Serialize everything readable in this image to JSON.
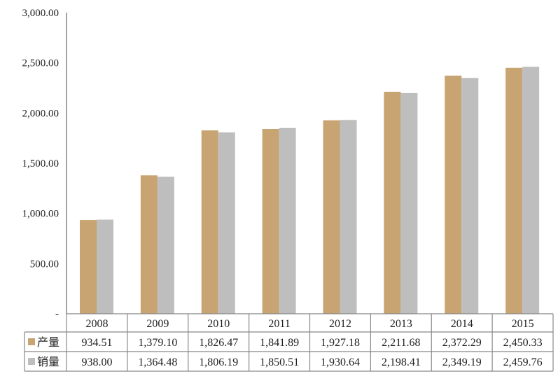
{
  "chart_data": {
    "type": "bar",
    "title": "",
    "xlabel": "",
    "ylabel": "",
    "ylim": [
      0,
      3000
    ],
    "yticks": [
      0,
      500,
      1000,
      1500,
      2000,
      2500,
      3000
    ],
    "ytick_labels": [
      "-",
      "500.00",
      "1,000.00",
      "1,500.00",
      "2,000.00",
      "2,500.00",
      "3,000.00"
    ],
    "grid": false,
    "legend_placement": "data table",
    "categories": [
      "2008",
      "2009",
      "2010",
      "2011",
      "2012",
      "2013",
      "2014",
      "2015"
    ],
    "series": [
      {
        "name": "产量",
        "color": "#C8A472",
        "values": [
          934.51,
          1379.1,
          1826.47,
          1841.89,
          1927.18,
          2211.68,
          2372.29,
          2450.33
        ],
        "labels": [
          "934.51",
          "1,379.10",
          "1,826.47",
          "1,841.89",
          "1,927.18",
          "2,211.68",
          "2,372.29",
          "2,450.33"
        ]
      },
      {
        "name": "销量",
        "color": "#BEBEBE",
        "values": [
          938.0,
          1364.48,
          1806.19,
          1850.51,
          1930.64,
          2198.41,
          2349.19,
          2459.76
        ],
        "labels": [
          "938.00",
          "1,364.48",
          "1,806.19",
          "1,850.51",
          "1,930.64",
          "2,198.41",
          "2,349.19",
          "2,459.76"
        ]
      }
    ]
  }
}
